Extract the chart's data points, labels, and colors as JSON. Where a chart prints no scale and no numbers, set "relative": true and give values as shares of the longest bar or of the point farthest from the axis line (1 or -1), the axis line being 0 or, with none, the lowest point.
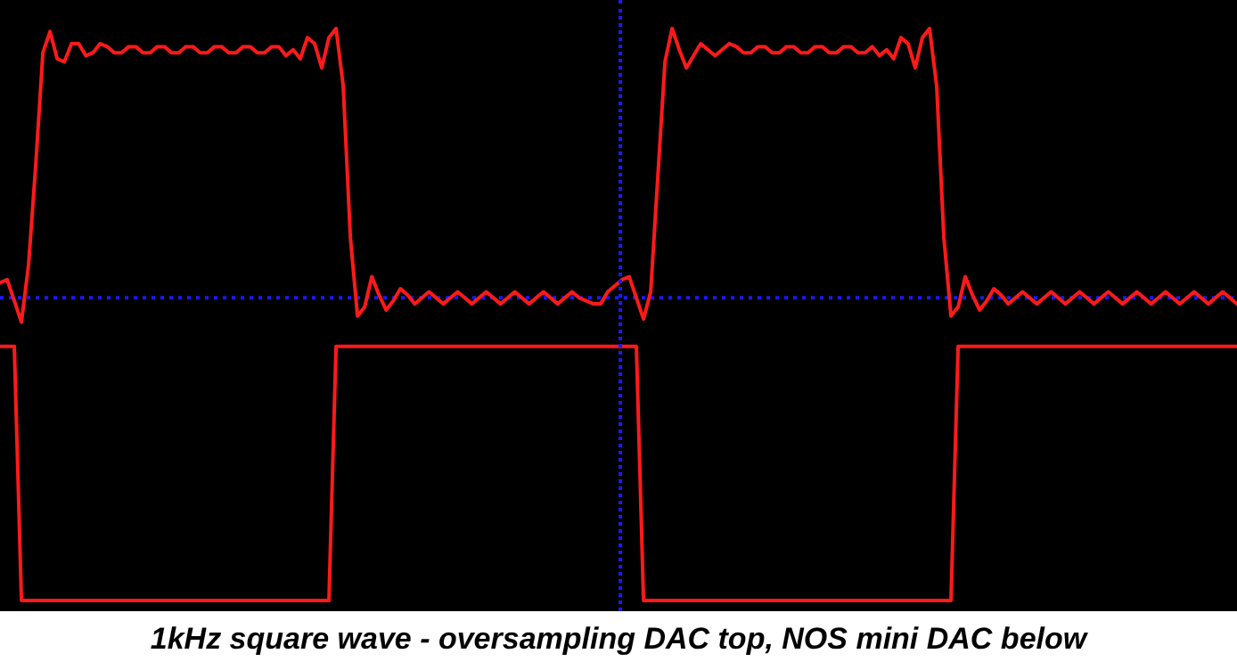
{
  "chart_data": {
    "type": "line",
    "relative": true,
    "grid": false,
    "legend": false,
    "tick_labels": false,
    "marker": "none",
    "line_style": "solid",
    "ref_lines": [
      {
        "axis": "y",
        "value": 0,
        "color": "#1a1aff",
        "line_style": "dotted"
      }
    ],
    "annotations": [
      "1kHz square wave - oversampling DAC top, NOS mini DAC below"
    ],
    "categories": [
      null,
      null,
      null,
      null,
      null,
      null,
      null,
      null,
      null,
      null,
      null,
      null,
      null,
      null,
      null,
      null,
      null,
      null,
      null,
      null,
      null,
      null,
      null,
      null,
      null,
      null,
      null,
      null,
      null,
      null,
      null,
      null,
      null,
      null,
      null,
      null,
      null,
      null,
      null,
      null,
      null,
      null,
      null,
      null,
      null,
      null,
      null,
      null,
      null,
      null,
      null,
      null,
      null,
      null,
      null,
      null,
      null,
      null,
      null,
      null,
      null,
      null,
      null,
      null,
      null,
      null,
      null,
      null,
      null,
      null,
      null,
      null,
      null,
      null,
      null,
      null,
      null,
      null,
      null,
      null,
      null,
      null,
      null,
      null,
      null,
      null,
      null,
      null,
      null,
      null,
      null,
      null,
      null,
      null,
      null,
      null,
      null,
      null,
      null,
      null,
      null,
      null,
      null,
      null,
      null,
      null,
      null,
      null,
      null,
      null,
      null,
      null,
      null,
      null,
      null,
      null,
      null,
      null,
      null,
      null,
      null,
      null,
      null,
      null,
      null,
      null,
      null,
      null,
      null,
      null,
      null,
      null,
      null,
      null,
      null,
      null,
      null,
      null,
      null,
      null,
      null,
      null,
      null,
      null,
      null,
      null,
      null,
      null,
      null,
      null,
      null,
      null,
      null,
      null,
      null,
      null,
      null,
      null,
      null,
      null,
      null,
      null,
      null,
      null,
      null,
      null,
      null,
      null,
      null,
      null,
      null,
      null,
      null,
      null
    ],
    "series": [
      {
        "color": "#ff1a1a",
        "values": [
          0.05,
          0.06,
          -0.01,
          -0.08,
          0.11,
          0.44,
          0.81,
          0.88,
          0.79,
          0.78,
          0.84,
          0.84,
          0.8,
          0.81,
          0.84,
          0.83,
          0.81,
          0.81,
          0.83,
          0.83,
          0.81,
          0.81,
          0.83,
          0.83,
          0.81,
          0.81,
          0.83,
          0.83,
          0.81,
          0.81,
          0.83,
          0.83,
          0.81,
          0.81,
          0.83,
          0.83,
          0.81,
          0.81,
          0.83,
          0.83,
          0.8,
          0.82,
          0.79,
          0.86,
          0.84,
          0.76,
          0.86,
          0.89,
          0.7,
          0.2,
          -0.06,
          -0.03,
          0.07,
          0.01,
          -0.04,
          -0.01,
          0.03,
          0.01,
          -0.02,
          0,
          0.02,
          0,
          -0.02,
          0,
          0.02,
          0,
          -0.02,
          0,
          0.02,
          0,
          -0.02,
          0,
          0.02,
          0,
          -0.02,
          0,
          0.02,
          0,
          -0.02,
          0,
          0.02,
          0,
          -0.01,
          -0.02,
          -0.02,
          0.02,
          0.04,
          0.06,
          0.07,
          0,
          -0.07,
          0.02,
          0.4,
          0.78,
          0.89,
          0.82,
          0.76,
          0.8,
          0.84,
          0.82,
          0.8,
          0.82,
          0.84,
          0.83,
          0.81,
          0.81,
          0.83,
          0.83,
          0.81,
          0.81,
          0.83,
          0.83,
          0.81,
          0.81,
          0.83,
          0.83,
          0.81,
          0.81,
          0.83,
          0.83,
          0.81,
          0.81,
          0.83,
          0.8,
          0.82,
          0.79,
          0.86,
          0.84,
          0.76,
          0.86,
          0.89,
          0.7,
          0.2,
          -0.06,
          -0.03,
          0.07,
          0.01,
          -0.04,
          -0.01,
          0.03,
          0.01,
          -0.02,
          0,
          0.02,
          0,
          -0.02,
          0,
          0.02,
          0,
          -0.02,
          0,
          0.02,
          0,
          -0.02,
          0,
          0.02,
          0,
          -0.02,
          0,
          0.02,
          0,
          -0.02,
          0,
          0.02,
          0,
          -0.02,
          0,
          0.02,
          0,
          -0.02,
          0,
          0.02,
          0,
          -0.02
        ]
      },
      {
        "color": "#ff1a1a",
        "values": [
          -0.16,
          -0.16,
          -0.16,
          -1,
          -1,
          -1,
          -1,
          -1,
          -1,
          -1,
          -1,
          -1,
          -1,
          -1,
          -1,
          -1,
          -1,
          -1,
          -1,
          -1,
          -1,
          -1,
          -1,
          -1,
          -1,
          -1,
          -1,
          -1,
          -1,
          -1,
          -1,
          -1,
          -1,
          -1,
          -1,
          -1,
          -1,
          -1,
          -1,
          -1,
          -1,
          -1,
          -1,
          -1,
          -1,
          -1,
          -1,
          -0.16,
          -0.16,
          -0.16,
          -0.16,
          -0.16,
          -0.16,
          -0.16,
          -0.16,
          -0.16,
          -0.16,
          -0.16,
          -0.16,
          -0.16,
          -0.16,
          -0.16,
          -0.16,
          -0.16,
          -0.16,
          -0.16,
          -0.16,
          -0.16,
          -0.16,
          -0.16,
          -0.16,
          -0.16,
          -0.16,
          -0.16,
          -0.16,
          -0.16,
          -0.16,
          -0.16,
          -0.16,
          -0.16,
          -0.16,
          -0.16,
          -0.16,
          -0.16,
          -0.16,
          -0.16,
          -0.16,
          -0.16,
          -0.16,
          -0.16,
          -1,
          -1,
          -1,
          -1,
          -1,
          -1,
          -1,
          -1,
          -1,
          -1,
          -1,
          -1,
          -1,
          -1,
          -1,
          -1,
          -1,
          -1,
          -1,
          -1,
          -1,
          -1,
          -1,
          -1,
          -1,
          -1,
          -1,
          -1,
          -1,
          -1,
          -1,
          -1,
          -1,
          -1,
          -1,
          -1,
          -1,
          -1,
          -1,
          -1,
          -1,
          -1,
          -1,
          -1,
          -0.16,
          -0.16,
          -0.16,
          -0.16,
          -0.16,
          -0.16,
          -0.16,
          -0.16,
          -0.16,
          -0.16,
          -0.16,
          -0.16,
          -0.16,
          -0.16,
          -0.16,
          -0.16,
          -0.16,
          -0.16,
          -0.16,
          -0.16,
          -0.16,
          -0.16,
          -0.16,
          -0.16,
          -0.16,
          -0.16,
          -0.16,
          -0.16,
          -0.16,
          -0.16,
          -0.16,
          -0.16,
          -0.16,
          -0.16,
          -0.16,
          -0.16,
          -0.16,
          -0.16,
          -0.16,
          -0.16
        ]
      }
    ]
  }
}
